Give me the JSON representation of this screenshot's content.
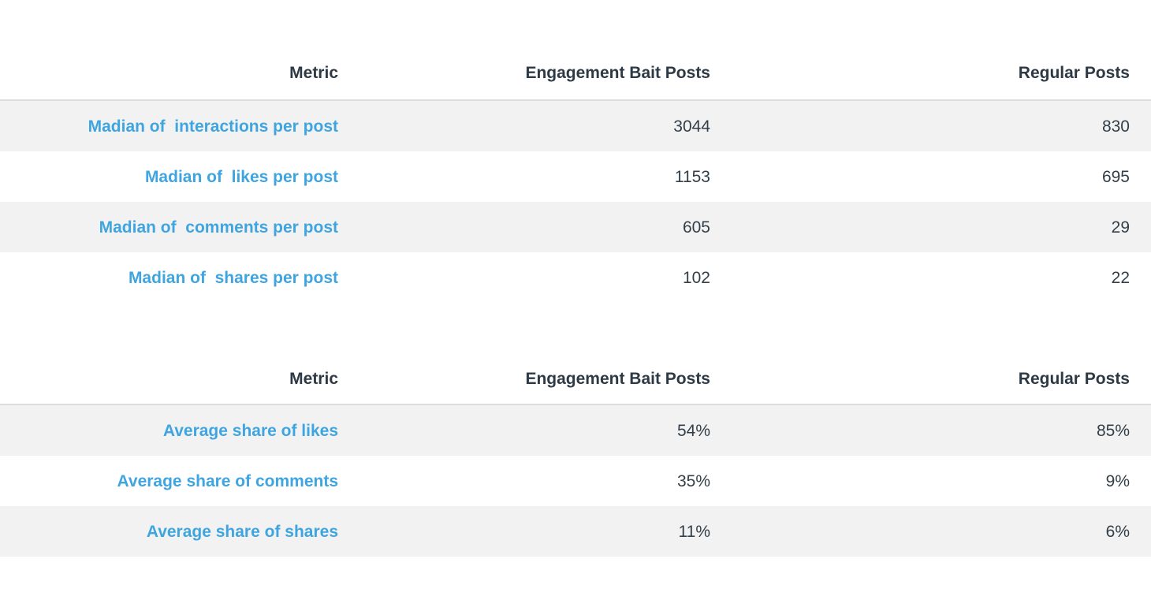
{
  "tables": [
    {
      "headers": {
        "metric": "Metric",
        "bait": "Engagement Bait Posts",
        "regular": "Regular Posts"
      },
      "rows": [
        {
          "metric": "Madian of  interactions per post",
          "bait": "3044",
          "regular": "830"
        },
        {
          "metric": "Madian of  likes per post",
          "bait": "1153",
          "regular": "695"
        },
        {
          "metric": "Madian of  comments per post",
          "bait": "605",
          "regular": "29"
        },
        {
          "metric": "Madian of  shares per post",
          "bait": "102",
          "regular": "22"
        }
      ]
    },
    {
      "headers": {
        "metric": "Metric",
        "bait": "Engagement Bait Posts",
        "regular": "Regular Posts"
      },
      "rows": [
        {
          "metric": "Average share of likes",
          "bait": "54%",
          "regular": "85%"
        },
        {
          "metric": "Average share of comments",
          "bait": "35%",
          "regular": "9%"
        },
        {
          "metric": "Average share of shares",
          "bait": "11%",
          "regular": "6%"
        }
      ]
    }
  ]
}
